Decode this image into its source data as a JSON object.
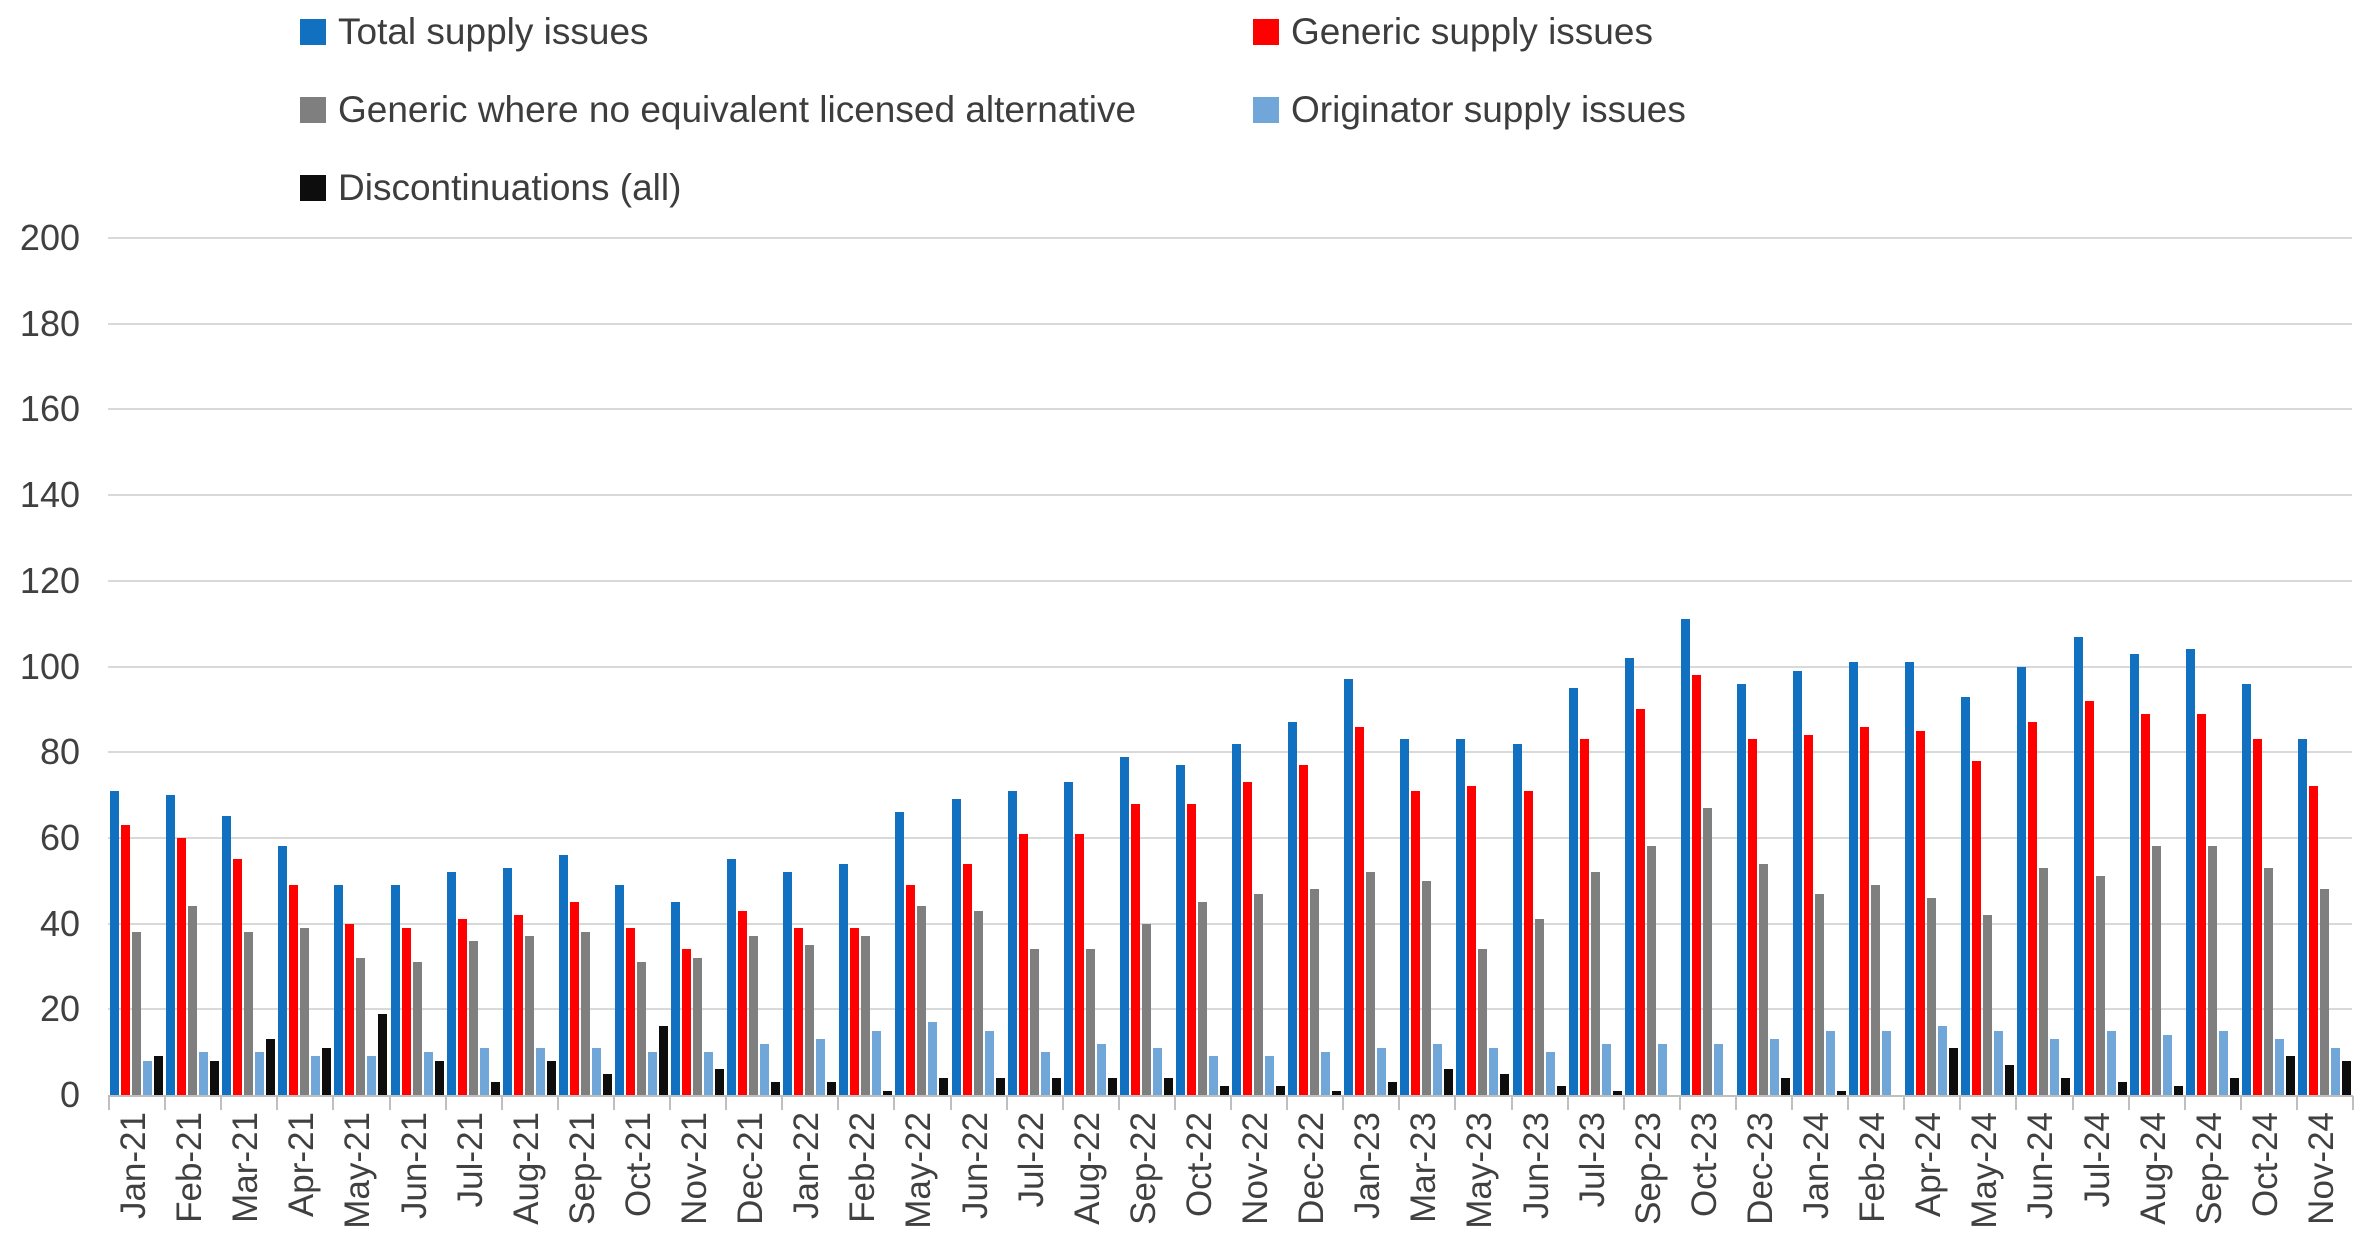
{
  "chart_data": {
    "type": "bar",
    "title": "",
    "xlabel": "",
    "ylabel": "",
    "ylim": [
      0,
      200
    ],
    "y_tick_step": 20,
    "y_ticks": [
      0,
      20,
      40,
      60,
      80,
      100,
      120,
      140,
      160,
      180,
      200
    ],
    "grid": true,
    "legend_position": "top",
    "categories": [
      "Jan-21",
      "Feb-21",
      "Mar-21",
      "Apr-21",
      "May-21",
      "Jun-21",
      "Jul-21",
      "Aug-21",
      "Sep-21",
      "Oct-21",
      "Nov-21",
      "Dec-21",
      "Jan-22",
      "Feb-22",
      "May-22",
      "Jun-22",
      "Jul-22",
      "Aug-22",
      "Sep-22",
      "Oct-22",
      "Nov-22",
      "Dec-22",
      "Jan-23",
      "Mar-23",
      "May-23",
      "Jun-23",
      "Jul-23",
      "Sep-23",
      "Oct-23",
      "Dec-23",
      "Jan-24",
      "Feb-24",
      "Apr-24",
      "May-24",
      "Jun-24",
      "Jul-24",
      "Aug-24",
      "Sep-24",
      "Oct-24",
      "Nov-24"
    ],
    "series": [
      {
        "name": "Total supply issues",
        "color": "#1170c0",
        "values": [
          71,
          70,
          65,
          58,
          49,
          49,
          52,
          53,
          56,
          49,
          45,
          55,
          52,
          54,
          66,
          69,
          71,
          73,
          79,
          77,
          82,
          87,
          97,
          83,
          83,
          82,
          95,
          102,
          111,
          96,
          99,
          101,
          101,
          93,
          100,
          107,
          103,
          104,
          96,
          83
        ]
      },
      {
        "name": "Generic supply issues",
        "color": "#ff0000",
        "values": [
          63,
          60,
          55,
          49,
          40,
          39,
          41,
          42,
          45,
          39,
          34,
          43,
          39,
          39,
          49,
          54,
          61,
          61,
          68,
          68,
          73,
          77,
          86,
          71,
          72,
          71,
          83,
          90,
          98,
          83,
          84,
          86,
          85,
          78,
          87,
          92,
          89,
          89,
          83,
          72
        ]
      },
      {
        "name": "Generic where no equivalent licensed alternative",
        "color": "#7f7f7f",
        "values": [
          38,
          44,
          38,
          39,
          32,
          31,
          36,
          37,
          38,
          31,
          32,
          37,
          35,
          37,
          44,
          43,
          34,
          34,
          40,
          45,
          47,
          48,
          52,
          50,
          34,
          41,
          52,
          58,
          67,
          54,
          47,
          49,
          46,
          42,
          53,
          51,
          58,
          58,
          53,
          48
        ]
      },
      {
        "name": "Originator supply issues",
        "color": "#71a6d9",
        "values": [
          8,
          10,
          10,
          9,
          9,
          10,
          11,
          11,
          11,
          10,
          10,
          12,
          13,
          15,
          17,
          15,
          10,
          12,
          11,
          9,
          9,
          10,
          11,
          12,
          11,
          10,
          12,
          12,
          12,
          13,
          15,
          15,
          16,
          15,
          13,
          15,
          14,
          15,
          13,
          11
        ]
      },
      {
        "name": "Discontinuations (all)",
        "color": "#0d0d0d",
        "values": [
          9,
          8,
          13,
          11,
          19,
          8,
          3,
          8,
          5,
          16,
          6,
          3,
          3,
          1,
          4,
          4,
          4,
          4,
          4,
          2,
          2,
          1,
          3,
          6,
          5,
          2,
          1,
          0,
          0,
          4,
          1,
          0,
          11,
          7,
          4,
          3,
          2,
          4,
          9,
          8
        ]
      }
    ]
  },
  "layout_colors": {
    "gridline": "#d9d9d9",
    "axis": "#bfbfbf",
    "text": "#404040"
  }
}
